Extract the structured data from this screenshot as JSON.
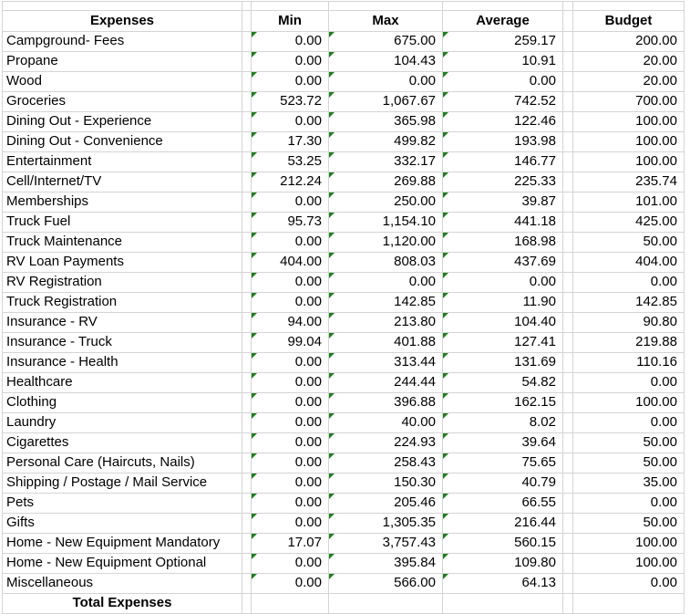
{
  "table": {
    "columns": {
      "expenses": "Expenses",
      "min": "Min",
      "max": "Max",
      "average": "Average",
      "budget": "Budget"
    },
    "rows": [
      {
        "label": "Campground- Fees",
        "min": "0.00",
        "max": "675.00",
        "average": "259.17",
        "budget": "200.00"
      },
      {
        "label": "Propane",
        "min": "0.00",
        "max": "104.43",
        "average": "10.91",
        "budget": "20.00"
      },
      {
        "label": "Wood",
        "min": "0.00",
        "max": "0.00",
        "average": "0.00",
        "budget": "20.00"
      },
      {
        "label": "Groceries",
        "min": "523.72",
        "max": "1,067.67",
        "average": "742.52",
        "budget": "700.00"
      },
      {
        "label": "Dining Out - Experience",
        "min": "0.00",
        "max": "365.98",
        "average": "122.46",
        "budget": "100.00"
      },
      {
        "label": "Dining Out - Convenience",
        "min": "17.30",
        "max": "499.82",
        "average": "193.98",
        "budget": "100.00"
      },
      {
        "label": "Entertainment",
        "min": "53.25",
        "max": "332.17",
        "average": "146.77",
        "budget": "100.00"
      },
      {
        "label": "Cell/Internet/TV",
        "min": "212.24",
        "max": "269.88",
        "average": "225.33",
        "budget": "235.74"
      },
      {
        "label": "Memberships",
        "min": "0.00",
        "max": "250.00",
        "average": "39.87",
        "budget": "101.00"
      },
      {
        "label": "Truck Fuel",
        "min": "95.73",
        "max": "1,154.10",
        "average": "441.18",
        "budget": "425.00"
      },
      {
        "label": "Truck Maintenance",
        "min": "0.00",
        "max": "1,120.00",
        "average": "168.98",
        "budget": "50.00"
      },
      {
        "label": "RV Loan Payments",
        "min": "404.00",
        "max": "808.03",
        "average": "437.69",
        "budget": "404.00"
      },
      {
        "label": "RV Registration",
        "min": "0.00",
        "max": "0.00",
        "average": "0.00",
        "budget": "0.00"
      },
      {
        "label": "Truck Registration",
        "min": "0.00",
        "max": "142.85",
        "average": "11.90",
        "budget": "142.85"
      },
      {
        "label": "Insurance - RV",
        "min": "94.00",
        "max": "213.80",
        "average": "104.40",
        "budget": "90.80"
      },
      {
        "label": "Insurance - Truck",
        "min": "99.04",
        "max": "401.88",
        "average": "127.41",
        "budget": "219.88"
      },
      {
        "label": "Insurance - Health",
        "min": "0.00",
        "max": "313.44",
        "average": "131.69",
        "budget": "110.16"
      },
      {
        "label": "Healthcare",
        "min": "0.00",
        "max": "244.44",
        "average": "54.82",
        "budget": "0.00"
      },
      {
        "label": "Clothing",
        "min": "0.00",
        "max": "396.88",
        "average": "162.15",
        "budget": "100.00"
      },
      {
        "label": "Laundry",
        "min": "0.00",
        "max": "40.00",
        "average": "8.02",
        "budget": "0.00"
      },
      {
        "label": "Cigarettes",
        "min": "0.00",
        "max": "224.93",
        "average": "39.64",
        "budget": "50.00"
      },
      {
        "label": "Personal Care (Haircuts, Nails)",
        "min": "0.00",
        "max": "258.43",
        "average": "75.65",
        "budget": "50.00"
      },
      {
        "label": "Shipping / Postage / Mail Service",
        "min": "0.00",
        "max": "150.30",
        "average": "40.79",
        "budget": "35.00"
      },
      {
        "label": "Pets",
        "min": "0.00",
        "max": "205.46",
        "average": "66.55",
        "budget": "0.00"
      },
      {
        "label": "Gifts",
        "min": "0.00",
        "max": "1,305.35",
        "average": "216.44",
        "budget": "50.00"
      },
      {
        "label": "Home - New Equipment Mandatory",
        "min": "17.07",
        "max": "3,757.43",
        "average": "560.15",
        "budget": "100.00"
      },
      {
        "label": "Home - New Equipment Optional",
        "min": "0.00",
        "max": "395.84",
        "average": "109.80",
        "budget": "100.00"
      },
      {
        "label": "Miscellaneous",
        "min": "0.00",
        "max": "566.00",
        "average": "64.13",
        "budget": "0.00"
      }
    ],
    "footer": {
      "label": "Total Expenses"
    }
  },
  "icons": {
    "error_indicator": "error-indicator-triangle"
  },
  "colors": {
    "gridline": "#d4d4d4",
    "error_indicator_green": "#1e7e1e",
    "text": "#000000",
    "background": "#ffffff"
  }
}
